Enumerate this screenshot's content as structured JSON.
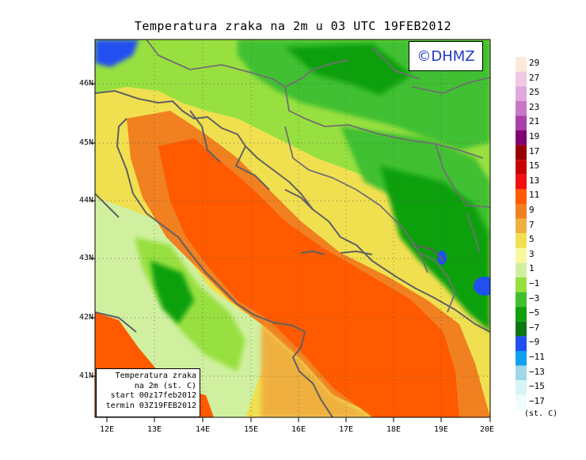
{
  "title": "Temperatura zraka na 2m u 03 UTC 19FEB2012",
  "copyright": "©DHMZ",
  "info_box": {
    "line1": "Temperatura zraka",
    "line2": "na 2m (st. C)",
    "line3": "start 00z17feb2012",
    "line4": "termin 03Z19FEB2012"
  },
  "axes": {
    "lat_labels": [
      "46N",
      "45N",
      "44N",
      "43N",
      "42N",
      "41N"
    ],
    "lon_labels": [
      "12E",
      "13E",
      "14E",
      "15E",
      "16E",
      "17E",
      "18E",
      "19E",
      "20E"
    ]
  },
  "colorbar": {
    "unit": "(st. C)",
    "labels": [
      "29",
      "27",
      "25",
      "23",
      "21",
      "19",
      "17",
      "15",
      "13",
      "11",
      "9",
      "7",
      "5",
      "3",
      "1",
      "−1",
      "−3",
      "−5",
      "−7",
      "−9",
      "−11",
      "−13",
      "−15",
      "−17"
    ],
    "colors": [
      "#fde9d9",
      "#f0c8e0",
      "#e0a8dc",
      "#c878c8",
      "#a840a8",
      "#800070",
      "#980000",
      "#c80000",
      "#f01010",
      "#ff5a00",
      "#f08020",
      "#f0b040",
      "#f0e050",
      "#f8f8a0",
      "#d0f0a0",
      "#98e040",
      "#40c030",
      "#10a010",
      "#0a7810",
      "#2050f0",
      "#10a0f0",
      "#a0d8e8",
      "#d8f4f4",
      "#f0fcfc"
    ]
  },
  "colors": {
    "sea_warm": "#ff5a00",
    "sea_mid": "#f08020",
    "coast": "#f0b040",
    "land_light": "#98e040",
    "land_mid": "#40c030",
    "land_dark": "#10a010",
    "cold": "#2050f0",
    "borders": "#606060"
  }
}
